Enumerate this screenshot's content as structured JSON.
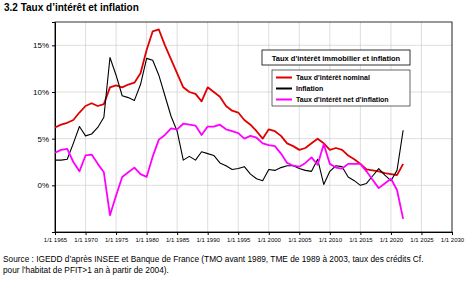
{
  "chart_data": {
    "type": "line",
    "title": "3.2 Taux d’intérêt et inflation",
    "legend_title": "Taux d'intérêt immobilier et inflation",
    "source": [
      "Source : IGEDD d’après INSEE et Banque de France (TMO avant 1989, TME de 1989 à 2003, taux des crédits Cf.",
      "pour l’habitat de PFIT>1 an à partir de 2004)."
    ],
    "x": [
      1965,
      1966,
      1967,
      1968,
      1969,
      1970,
      1971,
      1972,
      1973,
      1974,
      1975,
      1976,
      1977,
      1978,
      1979,
      1980,
      1981,
      1982,
      1983,
      1984,
      1985,
      1986,
      1987,
      1988,
      1989,
      1990,
      1991,
      1992,
      1993,
      1994,
      1995,
      1996,
      1997,
      1998,
      1999,
      2000,
      2001,
      2002,
      2003,
      2004,
      2005,
      2006,
      2007,
      2008,
      2009,
      2010,
      2011,
      2012,
      2013,
      2014,
      2015,
      2016,
      2017,
      2018,
      2019,
      2020,
      2021,
      2022
    ],
    "series": [
      {
        "name": "Taux d'intérêt nominal",
        "color": "#e00000",
        "values": [
          6.2,
          6.5,
          6.7,
          7.0,
          7.8,
          8.5,
          8.8,
          8.5,
          8.7,
          10.5,
          10.7,
          10.5,
          10.8,
          11.0,
          12.0,
          14.5,
          16.5,
          16.7,
          15.0,
          13.5,
          12.0,
          10.5,
          10.0,
          9.8,
          9.0,
          10.5,
          10.0,
          9.5,
          8.5,
          8.0,
          7.8,
          7.0,
          6.5,
          5.8,
          5.0,
          6.0,
          5.8,
          5.3,
          4.5,
          4.2,
          3.8,
          4.0,
          4.5,
          5.0,
          4.5,
          3.8,
          4.0,
          3.8,
          3.2,
          2.8,
          2.3,
          1.7,
          1.6,
          1.5,
          1.3,
          1.2,
          1.1,
          2.3
        ]
      },
      {
        "name": "Inflation",
        "color": "#000000",
        "values": [
          2.7,
          2.7,
          2.8,
          4.5,
          6.3,
          5.3,
          5.5,
          6.2,
          7.3,
          13.7,
          11.8,
          9.6,
          9.4,
          9.1,
          10.8,
          13.6,
          13.4,
          11.8,
          9.6,
          7.4,
          5.8,
          2.7,
          3.1,
          2.7,
          3.6,
          3.4,
          3.2,
          2.4,
          2.1,
          1.7,
          1.8,
          2.0,
          1.2,
          0.7,
          0.5,
          1.7,
          1.6,
          1.9,
          2.1,
          2.1,
          1.8,
          1.6,
          1.5,
          2.8,
          0.1,
          1.5,
          2.1,
          2.0,
          0.9,
          0.5,
          0.0,
          0.2,
          1.0,
          1.8,
          1.1,
          0.5,
          1.6,
          5.9
        ]
      },
      {
        "name": "Taux d'intérêt net d'inflation",
        "color": "#ff00ff",
        "values": [
          3.5,
          3.8,
          3.9,
          2.5,
          1.5,
          3.2,
          3.3,
          2.3,
          1.4,
          -3.2,
          -1.1,
          0.9,
          1.4,
          1.9,
          1.2,
          0.9,
          3.1,
          4.9,
          5.4,
          6.1,
          6.0,
          6.6,
          6.5,
          6.4,
          5.4,
          6.3,
          6.3,
          6.5,
          6.0,
          5.8,
          5.6,
          5.0,
          5.3,
          5.1,
          4.5,
          4.3,
          4.2,
          3.4,
          2.4,
          2.1,
          2.0,
          2.4,
          3.0,
          2.2,
          4.4,
          2.3,
          1.9,
          1.8,
          2.3,
          2.3,
          2.3,
          1.5,
          0.6,
          -0.3,
          0.2,
          0.7,
          -0.5,
          -3.6
        ]
      }
    ],
    "xlim": [
      1965,
      2030
    ],
    "xticks": [
      {
        "value": 1965,
        "label": "1/1 1965"
      },
      {
        "value": 1970,
        "label": "1/1 1970"
      },
      {
        "value": 1975,
        "label": "1/1 1975"
      },
      {
        "value": 1980,
        "label": "1/1 1980"
      },
      {
        "value": 1985,
        "label": "1/1 1985"
      },
      {
        "value": 1990,
        "label": "1/1 1990"
      },
      {
        "value": 1995,
        "label": "1/1 1995"
      },
      {
        "value": 2000,
        "label": "1/1 2000"
      },
      {
        "value": 2005,
        "label": "1/1 2005"
      },
      {
        "value": 2010,
        "label": "1/1 2010"
      },
      {
        "value": 2015,
        "label": "1/1 2015"
      },
      {
        "value": 2020,
        "label": "1/1 2020"
      },
      {
        "value": 2025,
        "label": "1/1 2025"
      },
      {
        "value": 2030,
        "label": "1/1 2030"
      }
    ],
    "ylim": [
      -5,
      17.5
    ],
    "yticks": [
      {
        "value": 0,
        "label": "0%"
      },
      {
        "value": 5,
        "label": "5%"
      },
      {
        "value": 10,
        "label": "10%"
      },
      {
        "value": 15,
        "label": "15%"
      }
    ],
    "grid": true,
    "legend": "upper right"
  }
}
